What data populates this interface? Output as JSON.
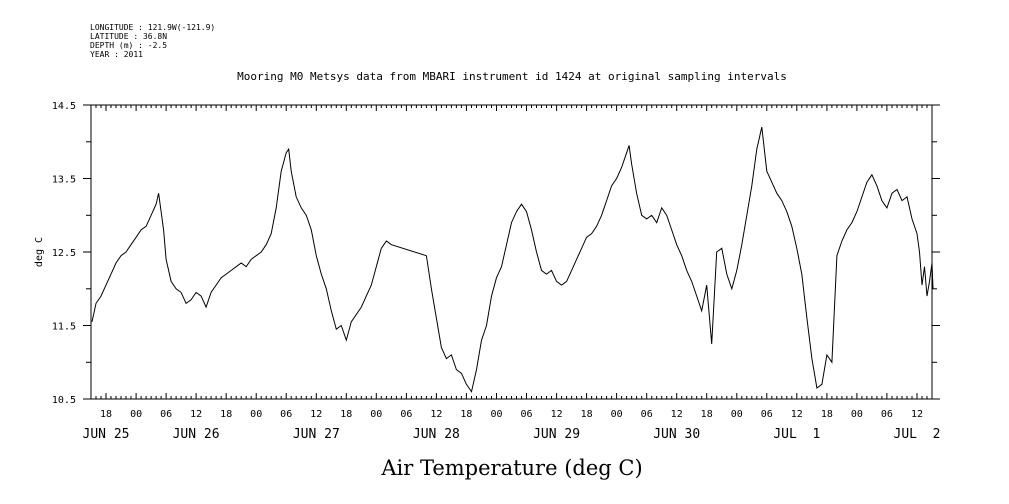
{
  "header": {
    "meta_lines": [
      "LONGITUDE : 121.9W(-121.9)",
      "LATITUDE : 36.8N",
      "DEPTH (m) : -2.5",
      "YEAR : 2011"
    ],
    "title": "Mooring M0 Metsys data from MBARI instrument id 1424 at original sampling intervals"
  },
  "chart_data": {
    "type": "line",
    "title": "Mooring M0 Metsys data from MBARI instrument id 1424 at original sampling intervals",
    "xlabel": "Air Temperature (deg C)",
    "ylabel": "deg C",
    "ylim": [
      10.5,
      14.5
    ],
    "yticks": [
      10.5,
      11.5,
      12.5,
      13.5,
      14.5
    ],
    "ytick_labels": [
      "10.5",
      "11.5",
      "12.5",
      "13.5",
      "14.5"
    ],
    "x_units": "hours since 2011-06-25 00:00",
    "xlim": [
      15,
      183
    ],
    "xticks_hours": [
      18,
      24,
      30,
      36,
      42,
      48,
      54,
      60,
      66,
      72,
      78,
      84,
      90,
      96,
      102,
      108,
      114,
      120,
      126,
      132,
      138,
      144,
      150,
      156,
      162,
      168,
      174,
      180
    ],
    "xtick_labels": [
      "18",
      "00",
      "06",
      "12",
      "18",
      "00",
      "06",
      "12",
      "18",
      "00",
      "06",
      "12",
      "18",
      "00",
      "06",
      "12",
      "18",
      "00",
      "06",
      "12",
      "18",
      "00",
      "06",
      "12",
      "18",
      "00",
      "06",
      "12"
    ],
    "day_labels": [
      {
        "label": "JUN 25",
        "hour": 18
      },
      {
        "label": "JUN 26",
        "hour": 36
      },
      {
        "label": "JUN 27",
        "hour": 60
      },
      {
        "label": "JUN 28",
        "hour": 84
      },
      {
        "label": "JUN 29",
        "hour": 108
      },
      {
        "label": "JUN 30",
        "hour": 132
      },
      {
        "label": "JUL  1",
        "hour": 156
      },
      {
        "label": "JUL  2",
        "hour": 180
      }
    ],
    "series": [
      {
        "color": "#000000",
        "points": [
          [
            15.2,
            11.55
          ],
          [
            16,
            11.8
          ],
          [
            17,
            11.9
          ],
          [
            18,
            12.05
          ],
          [
            19,
            12.2
          ],
          [
            20,
            12.35
          ],
          [
            21,
            12.45
          ],
          [
            22,
            12.5
          ],
          [
            23,
            12.6
          ],
          [
            24,
            12.7
          ],
          [
            25,
            12.8
          ],
          [
            26,
            12.85
          ],
          [
            27,
            13.0
          ],
          [
            28,
            13.15
          ],
          [
            28.5,
            13.3
          ],
          [
            29,
            13.05
          ],
          [
            29.5,
            12.8
          ],
          [
            30,
            12.4
          ],
          [
            31,
            12.1
          ],
          [
            32,
            12.0
          ],
          [
            33,
            11.95
          ],
          [
            34,
            11.8
          ],
          [
            35,
            11.85
          ],
          [
            36,
            11.95
          ],
          [
            37,
            11.9
          ],
          [
            38,
            11.75
          ],
          [
            39,
            11.95
          ],
          [
            40,
            12.05
          ],
          [
            41,
            12.15
          ],
          [
            42,
            12.2
          ],
          [
            43,
            12.25
          ],
          [
            44,
            12.3
          ],
          [
            45,
            12.35
          ],
          [
            46,
            12.3
          ],
          [
            47,
            12.4
          ],
          [
            48,
            12.45
          ],
          [
            49,
            12.5
          ],
          [
            50,
            12.6
          ],
          [
            51,
            12.75
          ],
          [
            52,
            13.1
          ],
          [
            53,
            13.6
          ],
          [
            54,
            13.85
          ],
          [
            54.5,
            13.9
          ],
          [
            55,
            13.6
          ],
          [
            56,
            13.25
          ],
          [
            57,
            13.1
          ],
          [
            58,
            13.0
          ],
          [
            59,
            12.8
          ],
          [
            60,
            12.45
          ],
          [
            61,
            12.2
          ],
          [
            62,
            12.0
          ],
          [
            63,
            11.7
          ],
          [
            64,
            11.45
          ],
          [
            65,
            11.5
          ],
          [
            66,
            11.3
          ],
          [
            67,
            11.55
          ],
          [
            68,
            11.65
          ],
          [
            69,
            11.75
          ],
          [
            70,
            11.9
          ],
          [
            71,
            12.05
          ],
          [
            72,
            12.3
          ],
          [
            73,
            12.55
          ],
          [
            74,
            12.65
          ],
          [
            75,
            12.6
          ],
          [
            82,
            12.45
          ],
          [
            83,
            12.0
          ],
          [
            84,
            11.6
          ],
          [
            85,
            11.2
          ],
          [
            86,
            11.05
          ],
          [
            87,
            11.1
          ],
          [
            88,
            10.9
          ],
          [
            89,
            10.85
          ],
          [
            90,
            10.7
          ],
          [
            91,
            10.6
          ],
          [
            92,
            10.9
          ],
          [
            93,
            11.3
          ],
          [
            94,
            11.5
          ],
          [
            95,
            11.9
          ],
          [
            96,
            12.15
          ],
          [
            97,
            12.3
          ],
          [
            98,
            12.6
          ],
          [
            99,
            12.9
          ],
          [
            100,
            13.05
          ],
          [
            101,
            13.15
          ],
          [
            102,
            13.05
          ],
          [
            103,
            12.8
          ],
          [
            104,
            12.5
          ],
          [
            105,
            12.25
          ],
          [
            106,
            12.2
          ],
          [
            107,
            12.25
          ],
          [
            108,
            12.1
          ],
          [
            109,
            12.05
          ],
          [
            110,
            12.1
          ],
          [
            111,
            12.25
          ],
          [
            112,
            12.4
          ],
          [
            113,
            12.55
          ],
          [
            114,
            12.7
          ],
          [
            115,
            12.75
          ],
          [
            116,
            12.85
          ],
          [
            117,
            13.0
          ],
          [
            118,
            13.2
          ],
          [
            119,
            13.4
          ],
          [
            120,
            13.5
          ],
          [
            121,
            13.65
          ],
          [
            122,
            13.85
          ],
          [
            122.5,
            13.95
          ],
          [
            123,
            13.7
          ],
          [
            124,
            13.3
          ],
          [
            125,
            13.0
          ],
          [
            126,
            12.95
          ],
          [
            127,
            13.0
          ],
          [
            128,
            12.9
          ],
          [
            129,
            13.1
          ],
          [
            130,
            13.0
          ],
          [
            131,
            12.8
          ],
          [
            132,
            12.6
          ],
          [
            133,
            12.45
          ],
          [
            134,
            12.25
          ],
          [
            135,
            12.1
          ],
          [
            136,
            11.9
          ],
          [
            137,
            11.7
          ],
          [
            138,
            12.05
          ],
          [
            139,
            11.25
          ],
          [
            140,
            12.5
          ],
          [
            141,
            12.55
          ],
          [
            142,
            12.2
          ],
          [
            143,
            12.0
          ],
          [
            144,
            12.25
          ],
          [
            145,
            12.6
          ],
          [
            146,
            13.0
          ],
          [
            147,
            13.4
          ],
          [
            148,
            13.9
          ],
          [
            149,
            14.2
          ],
          [
            150,
            13.6
          ],
          [
            151,
            13.45
          ],
          [
            152,
            13.3
          ],
          [
            153,
            13.2
          ],
          [
            154,
            13.05
          ],
          [
            155,
            12.85
          ],
          [
            156,
            12.55
          ],
          [
            157,
            12.2
          ],
          [
            158,
            11.6
          ],
          [
            159,
            11.05
          ],
          [
            160,
            10.65
          ],
          [
            161,
            10.7
          ],
          [
            162,
            11.1
          ],
          [
            163,
            11.0
          ],
          [
            164,
            12.45
          ],
          [
            165,
            12.65
          ],
          [
            166,
            12.8
          ],
          [
            167,
            12.9
          ],
          [
            168,
            13.05
          ],
          [
            169,
            13.25
          ],
          [
            170,
            13.45
          ],
          [
            171,
            13.55
          ],
          [
            172,
            13.4
          ],
          [
            173,
            13.2
          ],
          [
            174,
            13.1
          ],
          [
            175,
            13.3
          ],
          [
            176,
            13.35
          ],
          [
            177,
            13.2
          ],
          [
            178,
            13.25
          ],
          [
            179,
            12.95
          ],
          [
            180,
            12.75
          ],
          [
            180.5,
            12.5
          ],
          [
            181,
            12.05
          ],
          [
            181.5,
            12.3
          ],
          [
            182,
            11.9
          ],
          [
            182.5,
            12.1
          ],
          [
            183,
            12.35
          ],
          [
            183.2,
            12.0
          ]
        ]
      }
    ]
  }
}
